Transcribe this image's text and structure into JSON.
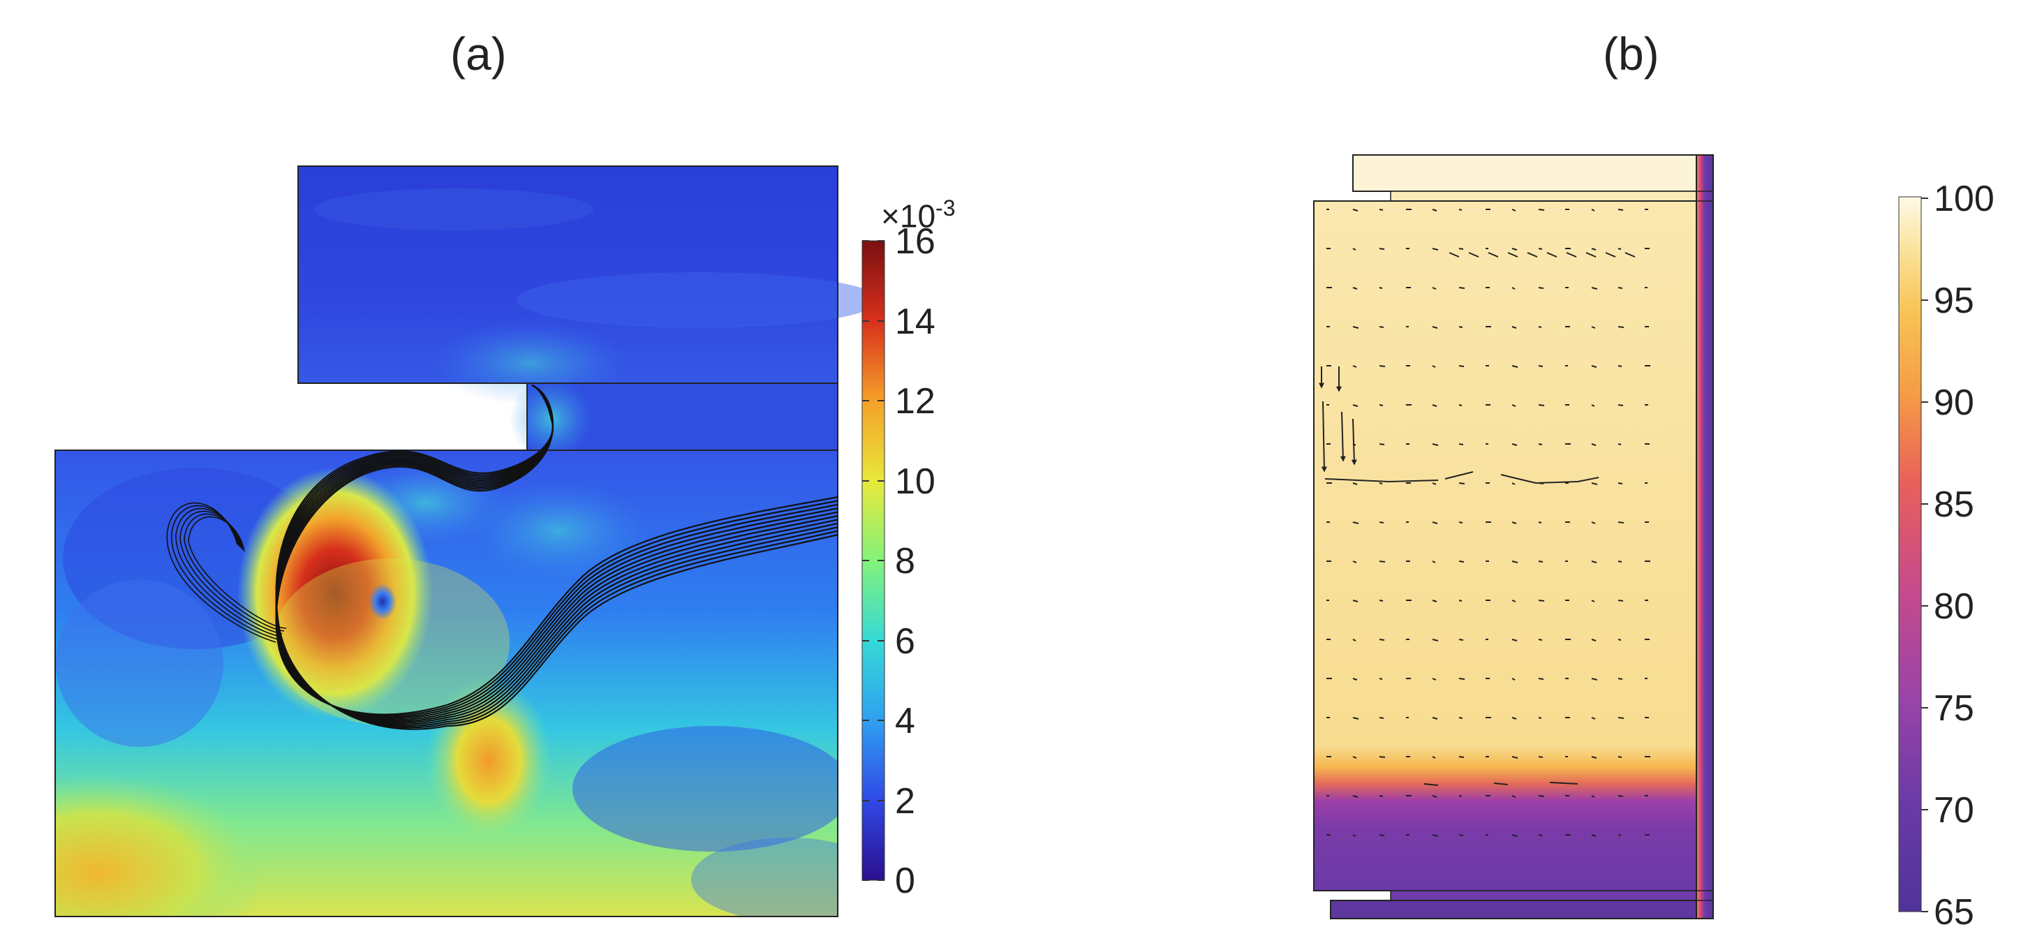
{
  "panels": [
    {
      "label": "(a)",
      "colorbar": {
        "multiplier": "×10",
        "exponent": "-3",
        "ticks": [
          "16",
          "14",
          "12",
          "10",
          "8",
          "6",
          "4",
          "2",
          "0"
        ],
        "colormap": [
          "#2b0f8e",
          "#3049e6",
          "#2fa0f0",
          "#36d9d6",
          "#84f27a",
          "#e8e83a",
          "#f4a02a",
          "#d8301c",
          "#7a1010"
        ]
      }
    },
    {
      "label": "(b)",
      "colorbar": {
        "ticks": [
          "100",
          "95",
          "90",
          "85",
          "80",
          "75",
          "70",
          "65"
        ],
        "colormap": [
          "#fffbe8",
          "#fbe3a0",
          "#f8c455",
          "#f59a46",
          "#e8605a",
          "#c64a8c",
          "#9a44a8",
          "#6a3aa6",
          "#50349a"
        ]
      }
    }
  ]
}
